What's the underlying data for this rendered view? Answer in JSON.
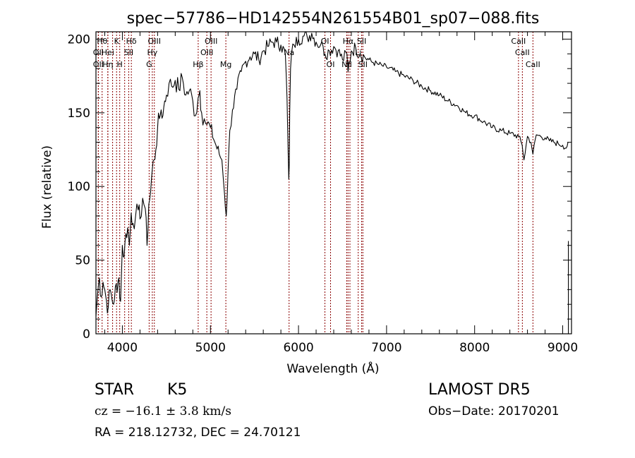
{
  "chart_data": {
    "type": "line",
    "title": "spec−57786−HD142554N261554B01_sp07−088.fits",
    "xlabel": "Wavelength (Å)",
    "ylabel": "Flux (relative)",
    "xlim": [
      3700,
      9100
    ],
    "ylim": [
      0,
      205
    ],
    "x_ticks": [
      4000,
      5000,
      6000,
      7000,
      8000,
      9000
    ],
    "y_ticks": [
      0,
      50,
      100,
      150,
      200
    ],
    "line_color": "#000000",
    "marker_color": "#8b0000",
    "series": [
      {
        "x": [
          3700,
          3720,
          3740,
          3760,
          3780,
          3800,
          3820,
          3840,
          3860,
          3880,
          3900,
          3920,
          3940,
          3960,
          3980,
          4000,
          4020,
          4040,
          4060,
          4080,
          4100,
          4120,
          4150,
          4180,
          4200,
          4230,
          4260,
          4280,
          4300,
          4320,
          4340,
          4360,
          4380,
          4400,
          4420,
          4440,
          4460,
          4480,
          4500,
          4530,
          4560,
          4600,
          4640,
          4680,
          4720,
          4760,
          4800,
          4830,
          4860,
          4880,
          4900,
          4930,
          4960,
          5000,
          5050,
          5100,
          5130,
          5160,
          5180,
          5200,
          5220,
          5250,
          5300,
          5350,
          5400,
          5450,
          5500,
          5550,
          5600,
          5650,
          5700,
          5750,
          5800,
          5850,
          5870,
          5880,
          5890,
          5895,
          5900,
          5910,
          5920,
          5950,
          6000,
          6050,
          6100,
          6150,
          6200,
          6250,
          6280,
          6300,
          6350,
          6400,
          6450,
          6500,
          6550,
          6563,
          6600,
          6650,
          6700,
          6750,
          6800,
          6850,
          6900,
          6950,
          7000,
          7100,
          7200,
          7300,
          7400,
          7500,
          7600,
          7700,
          7800,
          7900,
          8000,
          8100,
          8200,
          8300,
          8400,
          8500,
          8540,
          8560,
          8600,
          8640,
          8662,
          8700,
          8750,
          8800,
          8850,
          8900,
          8950,
          9000,
          9040,
          9060
        ],
        "y": [
          12,
          28,
          38,
          25,
          35,
          30,
          22,
          18,
          30,
          24,
          20,
          32,
          28,
          38,
          22,
          60,
          52,
          68,
          72,
          60,
          82,
          75,
          80,
          84,
          78,
          92,
          85,
          60,
          88,
          96,
          112,
          118,
          125,
          140,
          146,
          152,
          148,
          158,
          162,
          170,
          168,
          172,
          166,
          174,
          162,
          165,
          158,
          148,
          160,
          165,
          150,
          146,
          142,
          140,
          130,
          122,
          118,
          95,
          80,
          110,
          138,
          152,
          166,
          178,
          185,
          188,
          190,
          186,
          192,
          195,
          198,
          198,
          196,
          190,
          160,
          130,
          105,
          115,
          150,
          180,
          190,
          196,
          200,
          202,
          201,
          204,
          198,
          196,
          195,
          190,
          192,
          195,
          192,
          186,
          190,
          178,
          192,
          194,
          190,
          188,
          186,
          184,
          183,
          182,
          181,
          178,
          175,
          172,
          168,
          165,
          162,
          158,
          155,
          150,
          148,
          144,
          140,
          138,
          136,
          134,
          128,
          118,
          134,
          130,
          122,
          135,
          134,
          133,
          131,
          130,
          129,
          128,
          126,
          130
        ]
      }
    ],
    "line_markers": [
      {
        "wl": 3770,
        "label": "Hθ",
        "row": 0
      },
      {
        "wl": 3727,
        "label": "OII",
        "row": 1
      },
      {
        "wl": 3727,
        "label": "OII",
        "row": 2
      },
      {
        "wl": 3835,
        "label": "Hei",
        "row": 1
      },
      {
        "wl": 3835,
        "label": "Hη",
        "row": 2
      },
      {
        "wl": 3889,
        "label": "",
        "row": -1
      },
      {
        "wl": 3934,
        "label": "K",
        "row": 0
      },
      {
        "wl": 3970,
        "label": "H",
        "row": 2
      },
      {
        "wl": 4026,
        "label": "",
        "row": -1
      },
      {
        "wl": 4072,
        "label": "SII",
        "row": 1
      },
      {
        "wl": 4102,
        "label": "Hδ",
        "row": 0
      },
      {
        "wl": 4304,
        "label": "G",
        "row": 2
      },
      {
        "wl": 4340,
        "label": "Hγ",
        "row": 1
      },
      {
        "wl": 4363,
        "label": "OIII",
        "row": 0
      },
      {
        "wl": 4861,
        "label": "Hβ",
        "row": 2
      },
      {
        "wl": 4959,
        "label": "OIII",
        "row": 1
      },
      {
        "wl": 5007,
        "label": "OIII",
        "row": 0
      },
      {
        "wl": 5175,
        "label": "Mg",
        "row": 2
      },
      {
        "wl": 5893,
        "label": "Na",
        "row": 1
      },
      {
        "wl": 6300,
        "label": "OI",
        "row": 0
      },
      {
        "wl": 6364,
        "label": "OI",
        "row": 2
      },
      {
        "wl": 6548,
        "label": "NII",
        "row": 2
      },
      {
        "wl": 6563,
        "label": "Hα",
        "row": 0
      },
      {
        "wl": 6584,
        "label": "",
        "row": -1
      },
      {
        "wl": 6678,
        "label": "Li",
        "row": 1
      },
      {
        "wl": 6717,
        "label": "SII",
        "row": 0
      },
      {
        "wl": 6731,
        "label": "SII",
        "row": 2
      },
      {
        "wl": 8498,
        "label": "CaII",
        "row": 0
      },
      {
        "wl": 8542,
        "label": "CaII",
        "row": 1
      },
      {
        "wl": 8662,
        "label": "CaII",
        "row": 2
      }
    ]
  },
  "info": {
    "object_class": "STAR",
    "subclass": "K5",
    "survey": "LAMOST DR5",
    "cz": "cz = −16.1 ± 3.8 km/s",
    "obs_date": "Obs−Date: 20170201",
    "coords": "RA = 218.12732, DEC =  24.70121"
  }
}
